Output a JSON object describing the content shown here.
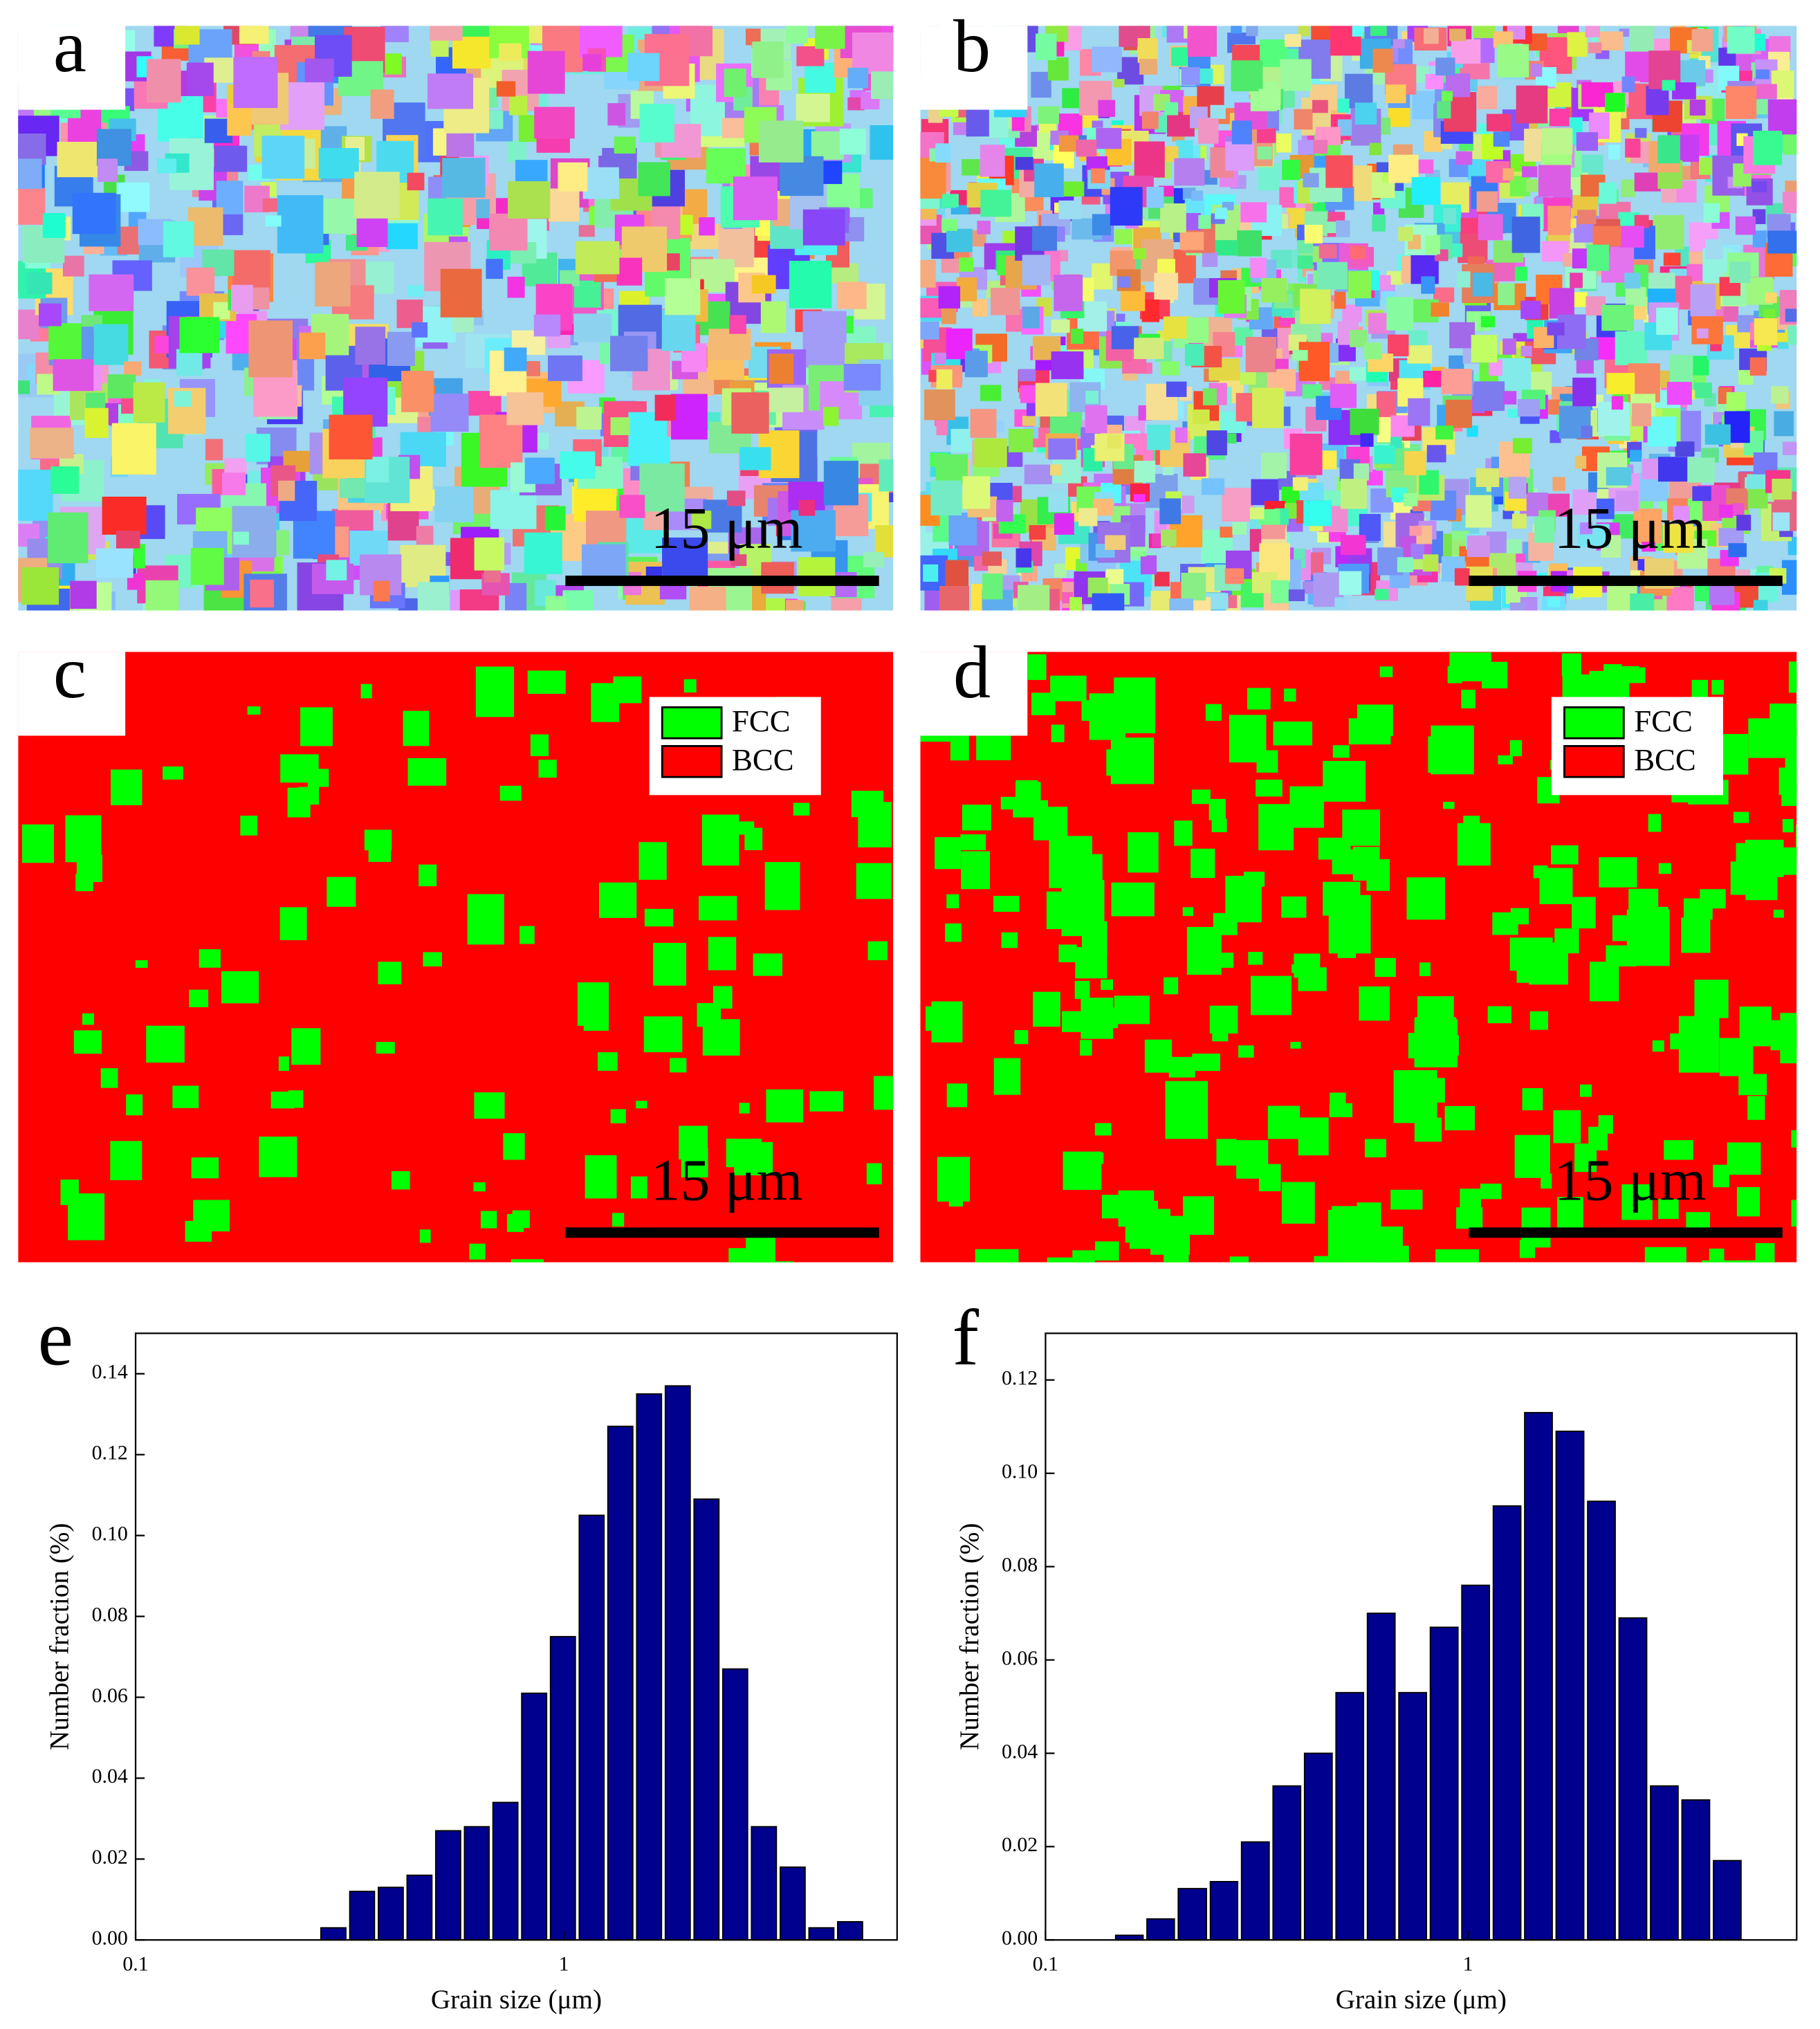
{
  "panels": [
    {
      "label": "a",
      "scale_bar": "15 μm"
    },
    {
      "label": "b",
      "scale_bar": "15 μm"
    },
    {
      "label": "c",
      "scale_bar": "15 μm",
      "legend": [
        {
          "name": "FCC",
          "color": "#00ff00"
        },
        {
          "name": "BCC",
          "color": "#ff0000"
        }
      ]
    },
    {
      "label": "d",
      "scale_bar": "15 μm",
      "legend": [
        {
          "name": "FCC",
          "color": "#00ff00"
        },
        {
          "name": "BCC",
          "color": "#ff0000"
        }
      ]
    }
  ],
  "chart_data": [
    {
      "type": "histogram",
      "panel_label": "e",
      "x_label": "Grain size (μm)",
      "y_label": "Number fraction (%)",
      "color": "#00008f",
      "log_x": true,
      "bins": [
        0.268,
        0.313,
        0.365,
        0.426,
        0.497,
        0.58,
        0.676,
        0.789,
        0.921,
        1.075,
        1.254,
        1.464,
        1.708,
        1.993,
        2.326,
        2.714,
        3.168,
        3.697,
        4.314,
        5.035
      ],
      "values": [
        0.003,
        0.012,
        0.013,
        0.016,
        0.027,
        0.028,
        0.034,
        0.061,
        0.075,
        0.105,
        0.127,
        0.135,
        0.137,
        0.109,
        0.067,
        0.028,
        0.018,
        0.003,
        0.0045
      ],
      "xlim": [
        0.1,
        6
      ],
      "xticks": [
        0.1,
        1
      ],
      "ylim": [
        0,
        0.15
      ],
      "yticks": [
        {
          "value": 0,
          "label": "0.00"
        },
        {
          "value": 0.02,
          "label": "0.02"
        },
        {
          "value": 0.04,
          "label": "0.04"
        },
        {
          "value": 0.06,
          "label": "0.06"
        },
        {
          "value": 0.08,
          "label": "0.08"
        },
        {
          "value": 0.1,
          "label": "0.10"
        },
        {
          "value": 0.12,
          "label": "0.12"
        },
        {
          "value": 0.14,
          "label": "0.14"
        }
      ]
    },
    {
      "type": "histogram",
      "panel_label": "f",
      "x_label": "Grain size (μm)",
      "y_label": "Number fraction (%)",
      "color": "#00008f",
      "log_x": true,
      "bins": [
        0.145,
        0.172,
        0.204,
        0.243,
        0.288,
        0.342,
        0.406,
        0.482,
        0.572,
        0.679,
        0.806,
        0.957,
        1.136,
        1.348,
        1.6,
        1.9,
        2.255,
        2.677,
        3.177,
        3.772,
        4.477
      ],
      "values": [
        0.001,
        0.0045,
        0.011,
        0.0125,
        0.021,
        0.033,
        0.04,
        0.053,
        0.07,
        0.053,
        0.067,
        0.076,
        0.093,
        0.113,
        0.109,
        0.094,
        0.069,
        0.033,
        0.03,
        0.017
      ],
      "xlim": [
        0.1,
        6
      ],
      "xticks": [
        0.1,
        1
      ],
      "ylim": [
        0,
        0.13
      ],
      "yticks": [
        {
          "value": 0,
          "label": "0.00"
        },
        {
          "value": 0.02,
          "label": "0.02"
        },
        {
          "value": 0.04,
          "label": "0.04"
        },
        {
          "value": 0.06,
          "label": "0.06"
        },
        {
          "value": 0.08,
          "label": "0.08"
        },
        {
          "value": 0.1,
          "label": "0.10"
        },
        {
          "value": 0.12,
          "label": "0.12"
        }
      ]
    }
  ]
}
